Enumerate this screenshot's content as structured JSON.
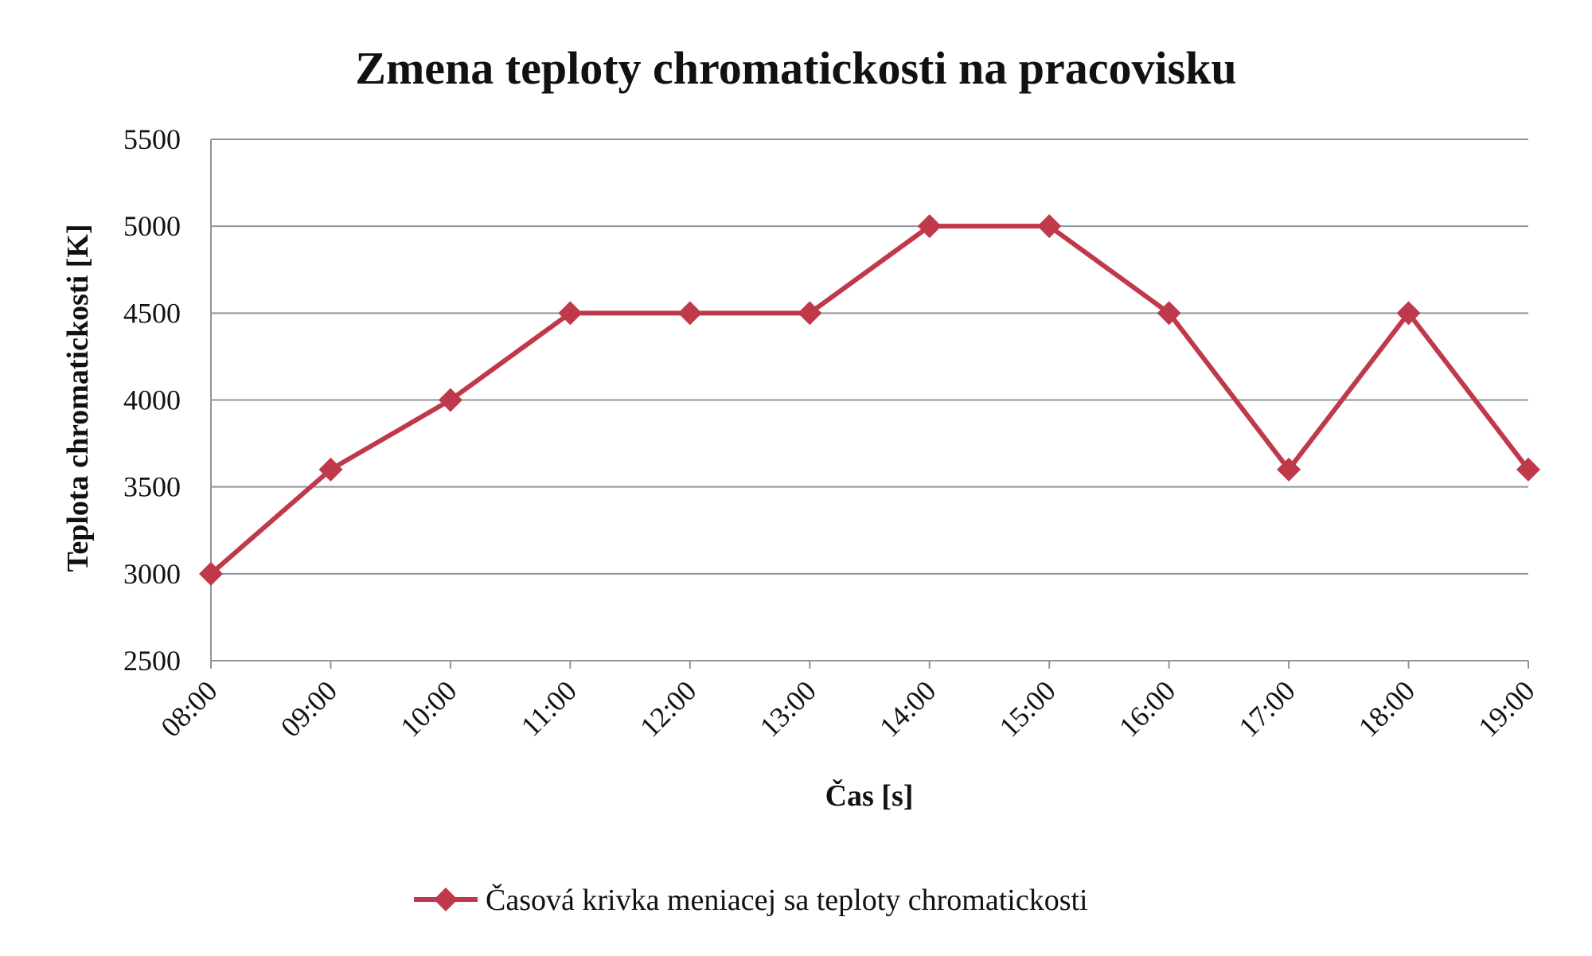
{
  "chart_data": {
    "type": "line",
    "title": "Zmena teploty chromatickosti na pracovisku",
    "xlabel": "Čas [s]",
    "ylabel": "Teplota chromatickosti [K]",
    "categories": [
      "08:00",
      "09:00",
      "10:00",
      "11:00",
      "12:00",
      "13:00",
      "14:00",
      "15:00",
      "16:00",
      "17:00",
      "18:00",
      "19:00"
    ],
    "series": [
      {
        "name": "Časová krivka meniacej sa teploty chromatickosti",
        "values": [
          3000,
          3600,
          4000,
          4500,
          4500,
          4500,
          5000,
          5000,
          4500,
          3600,
          4500,
          3600
        ],
        "color": "#c0394b",
        "marker": "diamond"
      }
    ],
    "yticks": [
      "2500",
      "3000",
      "3500",
      "4000",
      "4500",
      "5000",
      "5500"
    ],
    "ylim": [
      2500,
      5500
    ],
    "grid": "horizontal",
    "legend_position": "bottom"
  },
  "colors": {
    "grid": "#8c969c",
    "axis": "#8c969c",
    "series": "#c0394b"
  }
}
